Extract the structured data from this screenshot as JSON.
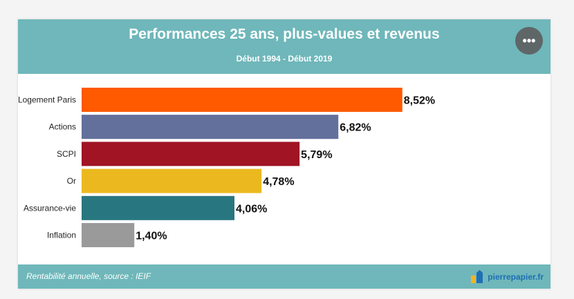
{
  "header": {
    "title": "Performances 25 ans, plus-values et revenus",
    "subtitle": "Début 1994 - Début 2019",
    "menu_label": "•••"
  },
  "footer": {
    "source": "Rentabilité annuelle, source : IEIF",
    "logo_text": "pierrepapier.fr",
    "logo_icon": "house-icon"
  },
  "colors": {
    "header_bg": "#6fb7ba",
    "logo_blue": "#1f6fb5"
  },
  "chart_data": {
    "type": "bar",
    "orientation": "horizontal",
    "categories": [
      "Logement Paris",
      "Actions",
      "SCPI",
      "Or",
      "Assurance-vie",
      "Inflation"
    ],
    "values": [
      8.52,
      6.82,
      5.79,
      4.78,
      4.06,
      1.4
    ],
    "data_labels": [
      "8,52%",
      "6,82%",
      "5,79%",
      "4,78%",
      "4,06%",
      "1,40%"
    ],
    "colors": [
      "#ff5a00",
      "#63709c",
      "#a11424",
      "#ebb91f",
      "#287680",
      "#9a9a9a"
    ],
    "xlim": [
      0,
      10.6
    ],
    "grid": false,
    "legend": "none"
  }
}
